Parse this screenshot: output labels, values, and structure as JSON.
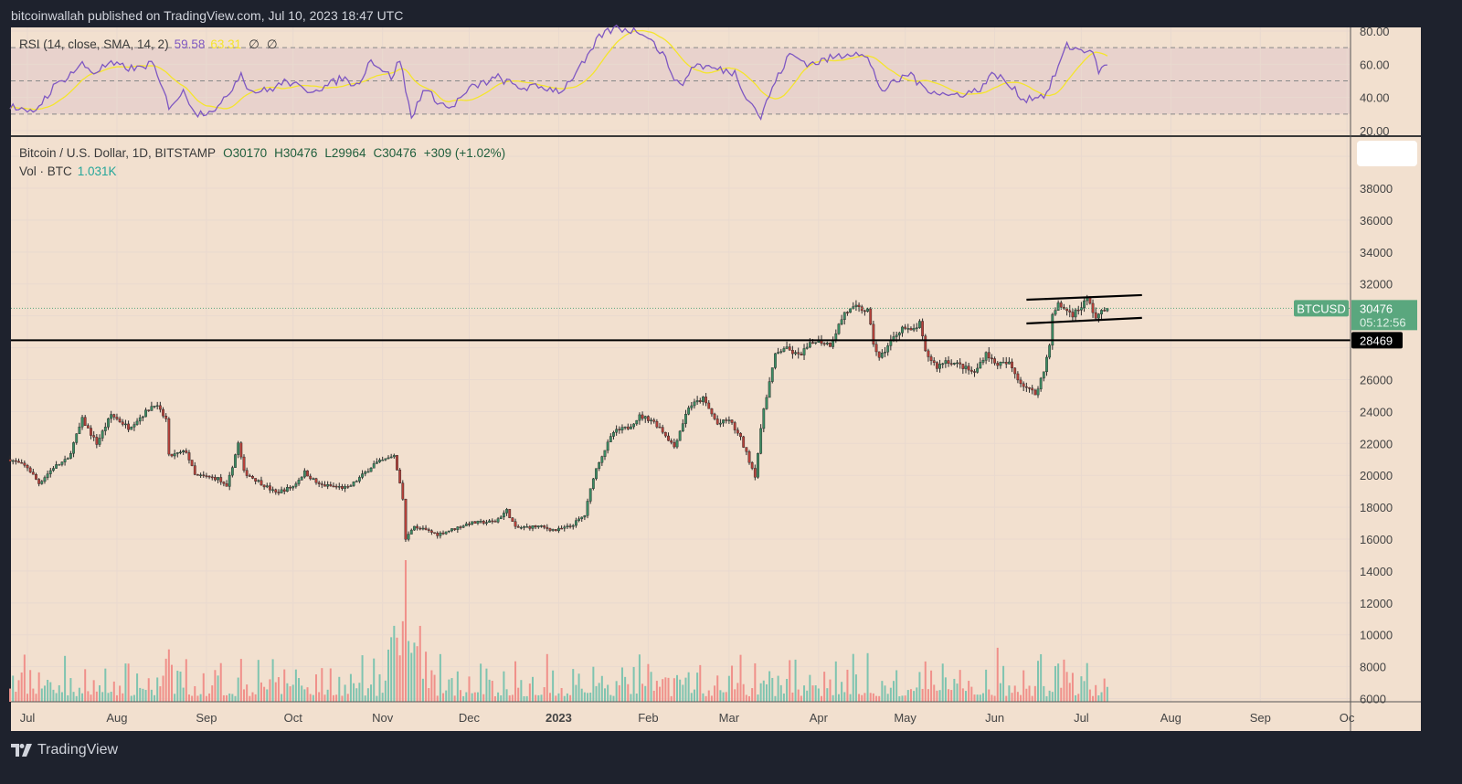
{
  "attribution": "bitcoinwallah published on TradingView.com, Jul 10, 2023 18:47 UTC",
  "footer_logo": "TradingView",
  "colors": {
    "background": "#f2e0cf",
    "frame": "#1e222d",
    "up": "#3d8b63",
    "down": "#b5413a",
    "vol_up": "#7fc4b0",
    "vol_down": "#f0908a",
    "rsi": "#7e57c2",
    "rsi_sma": "#f5e52c",
    "badge": "#5aa77e"
  },
  "rsi_legend": {
    "label": "RSI (14, close, SMA, 14, 2)",
    "value": "59.58",
    "sma_value": "63.31",
    "extra1": "∅",
    "extra2": "∅"
  },
  "main_legend": {
    "symbol": "Bitcoin / U.S. Dollar, 1D, BITSTAMP",
    "open": "O30170",
    "high": "H30476",
    "low": "L29964",
    "close": "C30476",
    "change": "+309 (+1.02%)"
  },
  "vol_legend": {
    "label": "Vol · BTC",
    "value": "1.031K"
  },
  "price_badge": {
    "symbol": "BTCUSD",
    "price": "30476",
    "countdown": "05:12:56"
  },
  "level_badge": "28469",
  "chart_data": [
    {
      "type": "candlestick",
      "title": "Bitcoin / U.S. Dollar, 1D, BITSTAMP",
      "ylim": [
        5000,
        40500
      ],
      "y_ticks": [
        "38000",
        "36000",
        "34000",
        "32000",
        "26000",
        "24000",
        "22000",
        "20000",
        "18000",
        "16000",
        "14000",
        "12000",
        "10000",
        "8000",
        "6000"
      ],
      "x_ticks": [
        {
          "label": "Jul",
          "date": "2022-07-01"
        },
        {
          "label": "Aug",
          "date": "2022-08-01"
        },
        {
          "label": "Sep",
          "date": "2022-09-01"
        },
        {
          "label": "Oct",
          "date": "2022-10-01"
        },
        {
          "label": "Nov",
          "date": "2022-11-01"
        },
        {
          "label": "Dec",
          "date": "2022-12-01"
        },
        {
          "label": "2023",
          "date": "2023-01-01",
          "bold": true
        },
        {
          "label": "Feb",
          "date": "2023-02-01"
        },
        {
          "label": "Mar",
          "date": "2023-03-01"
        },
        {
          "label": "Apr",
          "date": "2023-04-01"
        },
        {
          "label": "May",
          "date": "2023-05-01"
        },
        {
          "label": "Jun",
          "date": "2023-06-01"
        },
        {
          "label": "Jul",
          "date": "2023-07-01"
        },
        {
          "label": "Aug",
          "date": "2023-08-01"
        },
        {
          "label": "Sep",
          "date": "2023-09-01"
        },
        {
          "label": "Oc",
          "date": "2023-10-01"
        }
      ],
      "close_keypoints": [
        [
          "2022-06-25",
          21000
        ],
        [
          "2022-07-01",
          20500
        ],
        [
          "2022-07-05",
          19500
        ],
        [
          "2022-07-10",
          20500
        ],
        [
          "2022-07-15",
          21000
        ],
        [
          "2022-07-20",
          23500
        ],
        [
          "2022-07-25",
          22000
        ],
        [
          "2022-07-30",
          23800
        ],
        [
          "2022-08-05",
          23000
        ],
        [
          "2022-08-10",
          23800
        ],
        [
          "2022-08-14",
          24500
        ],
        [
          "2022-08-18",
          23500
        ],
        [
          "2022-08-19",
          21200
        ],
        [
          "2022-08-25",
          21500
        ],
        [
          "2022-08-28",
          20000
        ],
        [
          "2022-09-05",
          19800
        ],
        [
          "2022-09-08",
          19200
        ],
        [
          "2022-09-12",
          22000
        ],
        [
          "2022-09-14",
          20200
        ],
        [
          "2022-09-20",
          19500
        ],
        [
          "2022-09-25",
          18900
        ],
        [
          "2022-10-01",
          19300
        ],
        [
          "2022-10-05",
          20200
        ],
        [
          "2022-10-10",
          19400
        ],
        [
          "2022-10-20",
          19200
        ],
        [
          "2022-10-25",
          20000
        ],
        [
          "2022-10-29",
          20700
        ],
        [
          "2022-11-05",
          21200
        ],
        [
          "2022-11-08",
          18500
        ],
        [
          "2022-11-09",
          16000
        ],
        [
          "2022-11-12",
          16800
        ],
        [
          "2022-11-20",
          16300
        ],
        [
          "2022-11-25",
          16600
        ],
        [
          "2022-12-01",
          17000
        ],
        [
          "2022-12-10",
          17100
        ],
        [
          "2022-12-14",
          17800
        ],
        [
          "2022-12-17",
          16700
        ],
        [
          "2022-12-25",
          16800
        ],
        [
          "2022-12-31",
          16550
        ],
        [
          "2023-01-05",
          16800
        ],
        [
          "2023-01-10",
          17500
        ],
        [
          "2023-01-13",
          19900
        ],
        [
          "2023-01-15",
          20900
        ],
        [
          "2023-01-20",
          22700
        ],
        [
          "2023-01-25",
          23000
        ],
        [
          "2023-01-29",
          23700
        ],
        [
          "2023-02-02",
          23500
        ],
        [
          "2023-02-05",
          23000
        ],
        [
          "2023-02-10",
          21800
        ],
        [
          "2023-02-15",
          24300
        ],
        [
          "2023-02-20",
          24800
        ],
        [
          "2023-02-25",
          23200
        ],
        [
          "2023-03-01",
          23500
        ],
        [
          "2023-03-05",
          22300
        ],
        [
          "2023-03-10",
          20000
        ],
        [
          "2023-03-13",
          24200
        ],
        [
          "2023-03-17",
          27500
        ],
        [
          "2023-03-20",
          28000
        ],
        [
          "2023-03-25",
          27500
        ],
        [
          "2023-03-31",
          28500
        ],
        [
          "2023-04-05",
          28200
        ],
        [
          "2023-04-10",
          30200
        ],
        [
          "2023-04-14",
          30500
        ],
        [
          "2023-04-18",
          30300
        ],
        [
          "2023-04-20",
          28300
        ],
        [
          "2023-04-22",
          27300
        ],
        [
          "2023-04-26",
          28400
        ],
        [
          "2023-04-30",
          29300
        ],
        [
          "2023-05-03",
          29000
        ],
        [
          "2023-05-06",
          29500
        ],
        [
          "2023-05-08",
          27700
        ],
        [
          "2023-05-12",
          26800
        ],
        [
          "2023-05-15",
          27200
        ],
        [
          "2023-05-20",
          26900
        ],
        [
          "2023-05-25",
          26400
        ],
        [
          "2023-05-29",
          27700
        ],
        [
          "2023-06-01",
          27000
        ],
        [
          "2023-06-06",
          27000
        ],
        [
          "2023-06-10",
          25800
        ],
        [
          "2023-06-15",
          25100
        ],
        [
          "2023-06-18",
          26500
        ],
        [
          "2023-06-20",
          28300
        ],
        [
          "2023-06-21",
          30000
        ],
        [
          "2023-06-23",
          30700
        ],
        [
          "2023-06-28",
          30100
        ],
        [
          "2023-07-01",
          30600
        ],
        [
          "2023-07-03",
          31100
        ],
        [
          "2023-07-06",
          29900
        ],
        [
          "2023-07-08",
          30200
        ],
        [
          "2023-07-10",
          30476
        ]
      ],
      "last_price": 30476,
      "horizontal_line": 28469,
      "channel": {
        "upper": [
          [
            "2023-06-12",
            31010
          ],
          [
            "2023-07-22",
            31300
          ]
        ],
        "lower": [
          [
            "2023-06-12",
            29520
          ],
          [
            "2023-07-22",
            29870
          ]
        ]
      },
      "volume_peak": {
        "date": "2022-11-09",
        "value": "largest bar"
      }
    },
    {
      "type": "line",
      "title": "RSI (14, close, SMA, 14, 2)",
      "ylim": [
        18,
        85
      ],
      "y_ticks": [
        "80.00",
        "60.00",
        "40.00",
        "20.00"
      ],
      "bands": [
        70,
        50,
        30
      ],
      "rsi_keypoints": [
        [
          "2022-06-25",
          35
        ],
        [
          "2022-07-01",
          30
        ],
        [
          "2022-07-04",
          33
        ],
        [
          "2022-07-10",
          46
        ],
        [
          "2022-07-20",
          60
        ],
        [
          "2022-07-24",
          55
        ],
        [
          "2022-07-29",
          60
        ],
        [
          "2022-08-08",
          57
        ],
        [
          "2022-08-13",
          61
        ],
        [
          "2022-08-19",
          35
        ],
        [
          "2022-08-24",
          43
        ],
        [
          "2022-08-29",
          30
        ],
        [
          "2022-09-06",
          35
        ],
        [
          "2022-09-13",
          55
        ],
        [
          "2022-09-16",
          44
        ],
        [
          "2022-09-22",
          44
        ],
        [
          "2022-09-29",
          50
        ],
        [
          "2022-10-05",
          44
        ],
        [
          "2022-10-13",
          47
        ],
        [
          "2022-10-18",
          52
        ],
        [
          "2022-10-23",
          47
        ],
        [
          "2022-10-28",
          63
        ],
        [
          "2022-11-04",
          52
        ],
        [
          "2022-11-07",
          63
        ],
        [
          "2022-11-11",
          27
        ],
        [
          "2022-11-15",
          45
        ],
        [
          "2022-11-24",
          33
        ],
        [
          "2022-12-02",
          46
        ],
        [
          "2022-12-11",
          52
        ],
        [
          "2022-12-18",
          46
        ],
        [
          "2022-12-27",
          46
        ],
        [
          "2023-01-02",
          44
        ],
        [
          "2023-01-12",
          66
        ],
        [
          "2023-01-15",
          77
        ],
        [
          "2023-01-21",
          82
        ],
        [
          "2023-01-31",
          79
        ],
        [
          "2023-02-06",
          66
        ],
        [
          "2023-02-12",
          46
        ],
        [
          "2023-02-17",
          60
        ],
        [
          "2023-02-25",
          57
        ],
        [
          "2023-03-03",
          55
        ],
        [
          "2023-03-06",
          44
        ],
        [
          "2023-03-12",
          28
        ],
        [
          "2023-03-16",
          46
        ],
        [
          "2023-03-22",
          66
        ],
        [
          "2023-03-29",
          60
        ],
        [
          "2023-04-04",
          63
        ],
        [
          "2023-04-14",
          68
        ],
        [
          "2023-04-18",
          63
        ],
        [
          "2023-04-23",
          44
        ],
        [
          "2023-05-03",
          55
        ],
        [
          "2023-05-06",
          47
        ],
        [
          "2023-05-16",
          41
        ],
        [
          "2023-05-26",
          44
        ],
        [
          "2023-06-01",
          55
        ],
        [
          "2023-06-08",
          44
        ],
        [
          "2023-06-11",
          39
        ],
        [
          "2023-06-19",
          42
        ],
        [
          "2023-06-26",
          71
        ],
        [
          "2023-07-02",
          68
        ],
        [
          "2023-07-04",
          70
        ],
        [
          "2023-07-07",
          56
        ],
        [
          "2023-07-10",
          59.58
        ]
      ],
      "sma_last": 63.31
    }
  ]
}
